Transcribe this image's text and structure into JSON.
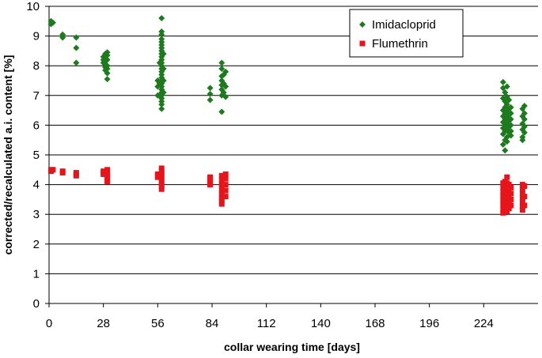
{
  "chart_data": {
    "type": "scatter",
    "title": "",
    "xlabel": "collar wearing time [days]",
    "ylabel": "corrected/recalculated a.i. content [%]",
    "xlim": [
      0,
      252
    ],
    "ylim": [
      0,
      10
    ],
    "x_ticks": [
      0,
      28,
      56,
      84,
      112,
      140,
      168,
      196,
      224
    ],
    "y_ticks": [
      0,
      1,
      2,
      3,
      4,
      5,
      6,
      7,
      8,
      9,
      10
    ],
    "grid": "horizontal",
    "legend_position": "top-right",
    "series": [
      {
        "name": "Imidacloprid",
        "marker": "diamond",
        "color": "#1e7a1e",
        "points": [
          [
            1,
            9.5
          ],
          [
            1,
            9.4
          ],
          [
            2,
            9.45
          ],
          [
            7,
            9.05
          ],
          [
            7,
            9.0
          ],
          [
            7,
            8.95
          ],
          [
            14,
            8.95
          ],
          [
            14,
            8.6
          ],
          [
            14,
            8.1
          ],
          [
            28,
            8.3
          ],
          [
            28,
            8.2
          ],
          [
            28,
            8.1
          ],
          [
            29,
            8.4
          ],
          [
            29,
            8.25
          ],
          [
            29,
            8.15
          ],
          [
            29,
            8.05
          ],
          [
            29,
            7.95
          ],
          [
            29,
            7.85
          ],
          [
            30,
            8.45
          ],
          [
            30,
            8.35
          ],
          [
            30,
            8.2
          ],
          [
            30,
            8.0
          ],
          [
            30,
            7.9
          ],
          [
            30,
            7.75
          ],
          [
            30,
            7.55
          ],
          [
            56,
            7.5
          ],
          [
            56,
            7.3
          ],
          [
            56,
            7.0
          ],
          [
            58,
            9.6
          ],
          [
            58,
            9.15
          ],
          [
            58,
            9.05
          ],
          [
            58,
            8.9
          ],
          [
            58,
            8.8
          ],
          [
            58,
            8.7
          ],
          [
            58,
            8.6
          ],
          [
            58,
            8.5
          ],
          [
            58,
            8.4
          ],
          [
            58,
            8.3
          ],
          [
            58,
            8.2
          ],
          [
            58,
            8.1
          ],
          [
            58,
            8.0
          ],
          [
            58,
            7.9
          ],
          [
            58,
            7.8
          ],
          [
            58,
            7.7
          ],
          [
            58,
            7.6
          ],
          [
            58,
            7.5
          ],
          [
            58,
            7.4
          ],
          [
            58,
            7.3
          ],
          [
            58,
            7.2
          ],
          [
            58,
            7.1
          ],
          [
            58,
            7.0
          ],
          [
            58,
            6.9
          ],
          [
            58,
            6.8
          ],
          [
            58,
            6.7
          ],
          [
            58,
            6.55
          ],
          [
            57,
            8.1
          ],
          [
            57,
            7.4
          ],
          [
            57,
            7.0
          ],
          [
            59,
            8.4
          ],
          [
            59,
            7.9
          ],
          [
            59,
            7.5
          ],
          [
            59,
            7.1
          ],
          [
            83,
            7.25
          ],
          [
            83,
            7.05
          ],
          [
            83,
            6.85
          ],
          [
            89,
            8.1
          ],
          [
            89,
            7.9
          ],
          [
            89,
            7.65
          ],
          [
            89,
            7.5
          ],
          [
            89,
            7.35
          ],
          [
            89,
            7.2
          ],
          [
            89,
            7.0
          ],
          [
            89,
            6.45
          ],
          [
            90,
            7.7
          ],
          [
            90,
            7.4
          ],
          [
            90,
            7.1
          ],
          [
            91,
            7.8
          ],
          [
            91,
            7.3
          ],
          [
            91,
            6.95
          ],
          [
            234,
            7.45
          ],
          [
            234,
            7.25
          ],
          [
            234,
            6.9
          ],
          [
            234,
            6.5
          ],
          [
            234,
            6.3
          ],
          [
            234,
            6.1
          ],
          [
            234,
            5.9
          ],
          [
            234,
            5.7
          ],
          [
            234,
            5.35
          ],
          [
            235,
            7.1
          ],
          [
            235,
            6.8
          ],
          [
            235,
            6.6
          ],
          [
            235,
            6.4
          ],
          [
            235,
            6.2
          ],
          [
            235,
            6.0
          ],
          [
            235,
            5.8
          ],
          [
            235,
            5.5
          ],
          [
            235,
            5.15
          ],
          [
            236,
            7.3
          ],
          [
            236,
            6.95
          ],
          [
            236,
            6.7
          ],
          [
            236,
            6.45
          ],
          [
            236,
            6.25
          ],
          [
            236,
            6.05
          ],
          [
            236,
            5.85
          ],
          [
            236,
            5.6
          ],
          [
            236,
            5.45
          ],
          [
            237,
            6.85
          ],
          [
            237,
            6.55
          ],
          [
            237,
            6.35
          ],
          [
            237,
            6.15
          ],
          [
            237,
            5.95
          ],
          [
            237,
            5.75
          ],
          [
            238,
            6.6
          ],
          [
            238,
            6.4
          ],
          [
            238,
            6.2
          ],
          [
            238,
            6.0
          ],
          [
            238,
            5.8
          ],
          [
            238,
            5.65
          ],
          [
            244,
            6.55
          ],
          [
            244,
            6.3
          ],
          [
            244,
            6.05
          ],
          [
            244,
            5.85
          ],
          [
            244,
            5.6
          ],
          [
            244,
            5.5
          ],
          [
            245,
            6.65
          ],
          [
            245,
            6.4
          ],
          [
            245,
            6.2
          ],
          [
            245,
            5.95
          ],
          [
            245,
            5.75
          ]
        ]
      },
      {
        "name": "Flumethrin",
        "marker": "square",
        "color": "#e8141b",
        "points": [
          [
            1,
            4.5
          ],
          [
            1,
            4.45
          ],
          [
            2,
            4.5
          ],
          [
            7,
            4.45
          ],
          [
            7,
            4.4
          ],
          [
            14,
            4.4
          ],
          [
            14,
            4.35
          ],
          [
            14,
            4.3
          ],
          [
            28,
            4.45
          ],
          [
            28,
            4.4
          ],
          [
            28,
            4.35
          ],
          [
            30,
            4.5
          ],
          [
            30,
            4.4
          ],
          [
            30,
            4.3
          ],
          [
            30,
            4.2
          ],
          [
            30,
            4.1
          ],
          [
            56,
            4.35
          ],
          [
            56,
            4.25
          ],
          [
            58,
            4.55
          ],
          [
            58,
            4.45
          ],
          [
            58,
            4.35
          ],
          [
            58,
            4.25
          ],
          [
            58,
            4.15
          ],
          [
            58,
            4.05
          ],
          [
            58,
            3.95
          ],
          [
            58,
            3.85
          ],
          [
            83,
            4.25
          ],
          [
            83,
            4.15
          ],
          [
            83,
            4.05
          ],
          [
            83,
            4.0
          ],
          [
            89,
            4.3
          ],
          [
            89,
            4.15
          ],
          [
            89,
            4.0
          ],
          [
            89,
            3.85
          ],
          [
            89,
            3.7
          ],
          [
            89,
            3.55
          ],
          [
            89,
            3.45
          ],
          [
            89,
            3.35
          ],
          [
            91,
            4.35
          ],
          [
            91,
            4.2
          ],
          [
            91,
            4.0
          ],
          [
            91,
            3.8
          ],
          [
            91,
            3.6
          ],
          [
            234,
            4.05
          ],
          [
            234,
            3.9
          ],
          [
            234,
            3.75
          ],
          [
            234,
            3.6
          ],
          [
            234,
            3.45
          ],
          [
            234,
            3.3
          ],
          [
            234,
            3.15
          ],
          [
            234,
            3.05
          ],
          [
            235,
            4.1
          ],
          [
            235,
            3.95
          ],
          [
            235,
            3.8
          ],
          [
            235,
            3.65
          ],
          [
            235,
            3.5
          ],
          [
            235,
            3.35
          ],
          [
            235,
            3.2
          ],
          [
            235,
            3.1
          ],
          [
            236,
            4.25
          ],
          [
            236,
            4.05
          ],
          [
            236,
            3.9
          ],
          [
            236,
            3.7
          ],
          [
            236,
            3.55
          ],
          [
            236,
            3.4
          ],
          [
            236,
            3.25
          ],
          [
            236,
            3.1
          ],
          [
            237,
            4.0
          ],
          [
            237,
            3.8
          ],
          [
            237,
            3.6
          ],
          [
            237,
            3.4
          ],
          [
            237,
            3.2
          ],
          [
            238,
            3.9
          ],
          [
            238,
            3.7
          ],
          [
            238,
            3.5
          ],
          [
            238,
            3.3
          ],
          [
            244,
            4.0
          ],
          [
            244,
            3.85
          ],
          [
            244,
            3.7
          ],
          [
            244,
            3.55
          ],
          [
            244,
            3.4
          ],
          [
            244,
            3.25
          ],
          [
            244,
            3.15
          ],
          [
            245,
            3.95
          ],
          [
            245,
            3.6
          ],
          [
            245,
            3.3
          ]
        ]
      }
    ]
  }
}
